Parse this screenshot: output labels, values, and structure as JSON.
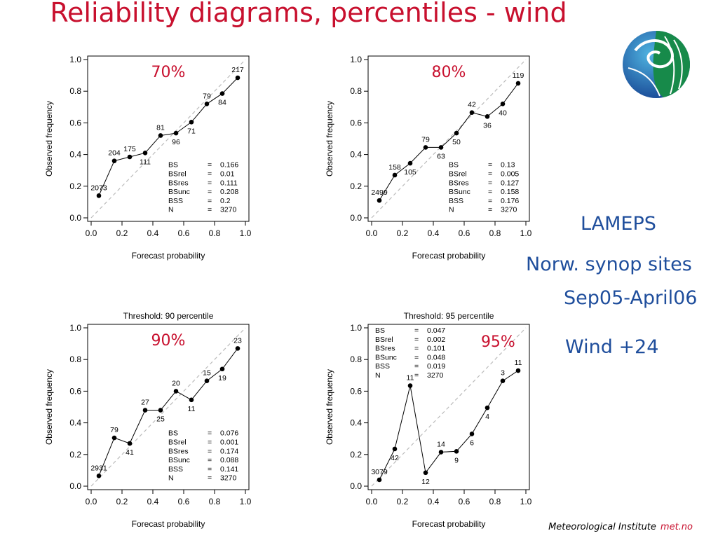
{
  "title": "Reliability diagrams, percentiles - wind",
  "side_text": {
    "model": "LAMEPS",
    "sites": "Norw. synop sites",
    "period": "Sep05-April06",
    "variable": "Wind +24"
  },
  "footer": {
    "institute": "Meteorological Institute",
    "brand": "met.no"
  },
  "colors": {
    "title": "#c8102e",
    "percent_label": "#c8102e",
    "side_text": "#1f4e9c",
    "diagonal": "#bbbbbb",
    "points": "#000000"
  },
  "logo": {
    "icon": "met-no-globe-logo"
  },
  "chart_data": [
    {
      "type": "line",
      "percentile_label": "70%",
      "threshold_title": "",
      "xlabel": "Forecast probability",
      "ylabel": "Observed frequency",
      "xlim": [
        0,
        1
      ],
      "ylim": [
        0,
        1
      ],
      "ticks": [
        "0.0",
        "0.2",
        "0.4",
        "0.6",
        "0.8",
        "1.0"
      ],
      "reference": "diagonal",
      "x": [
        0.05,
        0.15,
        0.25,
        0.35,
        0.45,
        0.55,
        0.65,
        0.75,
        0.85,
        0.95
      ],
      "y": [
        0.14,
        0.36,
        0.385,
        0.41,
        0.52,
        0.535,
        0.605,
        0.72,
        0.785,
        0.885
      ],
      "counts": [
        "2073",
        "204",
        "175",
        "111",
        "81",
        "96",
        "71",
        "79",
        "84",
        "217"
      ],
      "stats": [
        [
          "BS",
          "0.166"
        ],
        [
          "BSrel",
          "0.01"
        ],
        [
          "BSres",
          "0.111"
        ],
        [
          "BSunc",
          "0.208"
        ],
        [
          "BSS",
          "0.2"
        ],
        [
          "N",
          "3270"
        ]
      ],
      "stats_position": "bottom-right"
    },
    {
      "type": "line",
      "percentile_label": "80%",
      "threshold_title": "",
      "xlabel": "Forecast probability",
      "ylabel": "Observed frequency",
      "xlim": [
        0,
        1
      ],
      "ylim": [
        0,
        1
      ],
      "ticks": [
        "0.0",
        "0.2",
        "0.4",
        "0.6",
        "0.8",
        "1.0"
      ],
      "reference": "diagonal",
      "x": [
        0.05,
        0.15,
        0.25,
        0.35,
        0.45,
        0.55,
        0.65,
        0.75,
        0.85,
        0.95
      ],
      "y": [
        0.11,
        0.27,
        0.345,
        0.445,
        0.445,
        0.535,
        0.665,
        0.64,
        0.72,
        0.85
      ],
      "counts": [
        "2499",
        "158",
        "105",
        "79",
        "63",
        "50",
        "42",
        "36",
        "40",
        "119"
      ],
      "stats": [
        [
          "BS",
          "0.13"
        ],
        [
          "BSrel",
          "0.005"
        ],
        [
          "BSres",
          "0.127"
        ],
        [
          "BSunc",
          "0.158"
        ],
        [
          "BSS",
          "0.176"
        ],
        [
          "N",
          "3270"
        ]
      ],
      "stats_position": "bottom-right"
    },
    {
      "type": "line",
      "percentile_label": "90%",
      "threshold_title": "Threshold: 90 percentile",
      "xlabel": "Forecast probability",
      "ylabel": "Observed frequency",
      "xlim": [
        0,
        1
      ],
      "ylim": [
        0,
        1
      ],
      "ticks": [
        "0.0",
        "0.2",
        "0.4",
        "0.6",
        "0.8",
        "1.0"
      ],
      "reference": "diagonal",
      "x": [
        0.05,
        0.15,
        0.25,
        0.35,
        0.45,
        0.55,
        0.65,
        0.75,
        0.85,
        0.95
      ],
      "y": [
        0.065,
        0.305,
        0.27,
        0.48,
        0.48,
        0.6,
        0.545,
        0.665,
        0.74,
        0.87
      ],
      "counts": [
        "2931",
        "79",
        "41",
        "27",
        "25",
        "20",
        "11",
        "15",
        "19",
        "23"
      ],
      "stats": [
        [
          "BS",
          "0.076"
        ],
        [
          "BSrel",
          "0.001"
        ],
        [
          "BSres",
          "0.174"
        ],
        [
          "BSunc",
          "0.088"
        ],
        [
          "BSS",
          "0.141"
        ],
        [
          "N",
          "3270"
        ]
      ],
      "stats_position": "bottom-right"
    },
    {
      "type": "line",
      "percentile_label": "95%",
      "threshold_title": "Threshold: 95 percentile",
      "xlabel": "Forecast probability",
      "ylabel": "Observed frequency",
      "xlim": [
        0,
        1
      ],
      "ylim": [
        0,
        1
      ],
      "ticks": [
        "0.0",
        "0.2",
        "0.4",
        "0.6",
        "0.8",
        "1.0"
      ],
      "reference": "diagonal",
      "x": [
        0.05,
        0.15,
        0.25,
        0.35,
        0.45,
        0.55,
        0.65,
        0.75,
        0.85,
        0.95
      ],
      "y": [
        0.04,
        0.235,
        0.635,
        0.085,
        0.215,
        0.22,
        0.33,
        0.495,
        0.665,
        0.73
      ],
      "counts": [
        "3079",
        "42",
        "11",
        "12",
        "14",
        "9",
        "6",
        "4",
        "3",
        "11"
      ],
      "stats": [
        [
          "BS",
          "0.047"
        ],
        [
          "BSrel",
          "0.002"
        ],
        [
          "BSres",
          "0.101"
        ],
        [
          "BSunc",
          "0.048"
        ],
        [
          "BSS",
          "0.019"
        ],
        [
          "N",
          "3270"
        ]
      ],
      "stats_position": "top-left"
    }
  ]
}
